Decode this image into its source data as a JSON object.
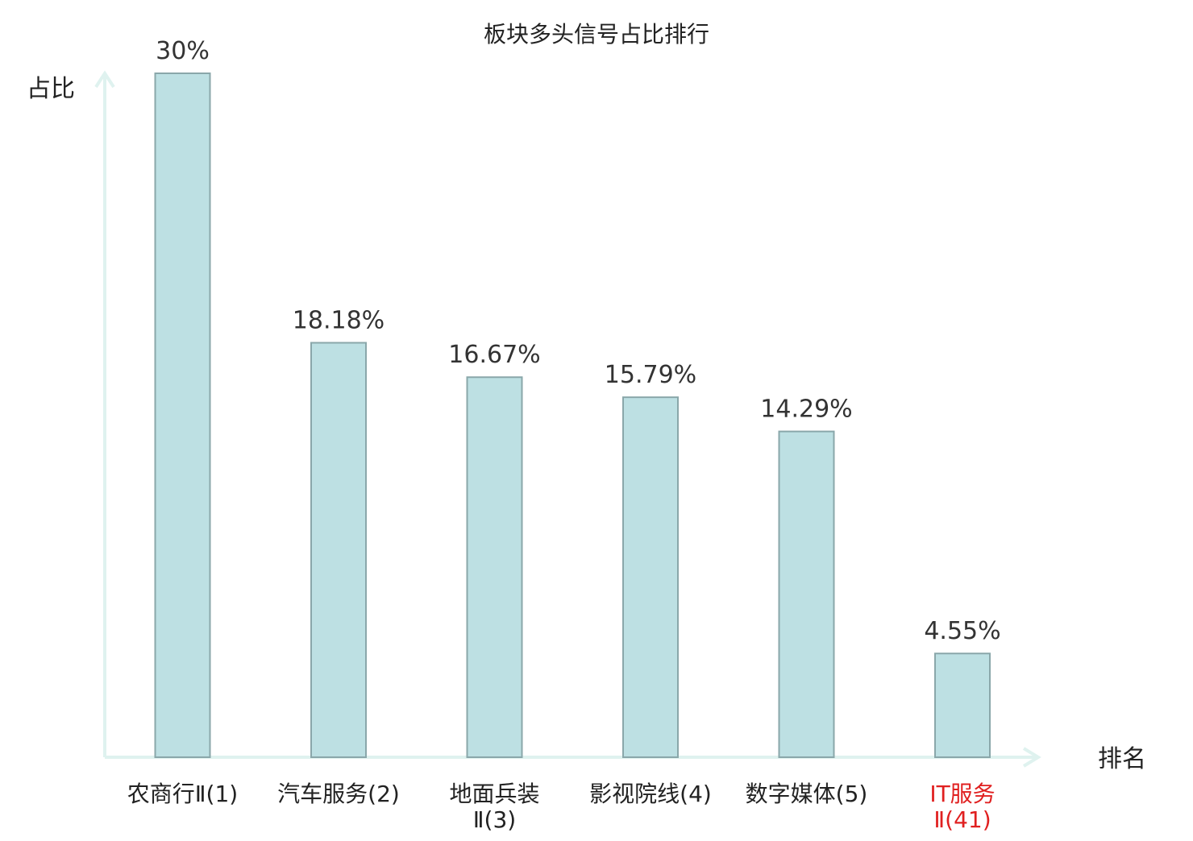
{
  "chart_data": {
    "type": "bar",
    "title": "板块多头信号占比排行",
    "ylabel": "占比",
    "xlabel": "排名",
    "categories": [
      [
        "农商行Ⅱ(1)"
      ],
      [
        "汽车服务(2)"
      ],
      [
        "地面兵装",
        "Ⅱ(3)"
      ],
      [
        "影视院线(4)"
      ],
      [
        "数字媒体(5)"
      ],
      [
        "IT服务",
        "Ⅱ(41)"
      ]
    ],
    "values": [
      30,
      18.18,
      16.67,
      15.79,
      14.29,
      4.55
    ],
    "data_labels": [
      "30%",
      "18.18%",
      "16.67%",
      "15.79%",
      "14.29%",
      "4.55%"
    ],
    "highlight_index": 5,
    "ylim": [
      0,
      30
    ],
    "grid": false,
    "legend": "none",
    "colors": {
      "bar_fill": "#bde0e3",
      "bar_stroke": "#8aa7aa",
      "axis": "#dff2ef",
      "text": "#222222",
      "value_text": "#333333",
      "highlight": "#e02020"
    }
  }
}
